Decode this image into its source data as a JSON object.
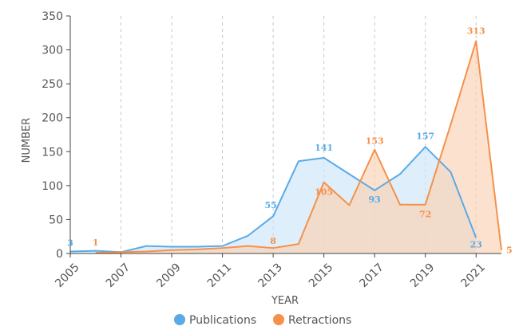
{
  "chart_data": {
    "type": "area",
    "x": [
      2005,
      2006,
      2007,
      2008,
      2009,
      2010,
      2011,
      2012,
      2013,
      2014,
      2015,
      2016,
      2017,
      2018,
      2019,
      2020,
      2021,
      2022
    ],
    "series": [
      {
        "name": "Publications",
        "color": "#5aaae7",
        "fill": "#cce5f8",
        "values": [
          3,
          4,
          2,
          11,
          10,
          10,
          11,
          26,
          55,
          136,
          141,
          117,
          93,
          117,
          157,
          120,
          23,
          null
        ]
      },
      {
        "name": "Retractions",
        "color": "#f5914a",
        "fill": "#fbd2b4",
        "values": [
          null,
          1,
          2,
          3,
          5,
          6,
          8,
          11,
          8,
          14,
          105,
          71,
          153,
          72,
          72,
          190,
          313,
          5
        ]
      }
    ],
    "data_labels": [
      {
        "series": "Publications",
        "x": 2005,
        "text": "3"
      },
      {
        "series": "Retractions",
        "x": 2006,
        "text": "1"
      },
      {
        "series": "Publications",
        "x": 2013,
        "text": "55"
      },
      {
        "series": "Retractions",
        "x": 2013,
        "text": "8"
      },
      {
        "series": "Retractions",
        "x": 2015,
        "text": "105"
      },
      {
        "series": "Publications",
        "x": 2015,
        "text": "141"
      },
      {
        "series": "Retractions",
        "x": 2017,
        "text": "153"
      },
      {
        "series": "Publications",
        "x": 2017,
        "text": "93"
      },
      {
        "series": "Publications",
        "x": 2019,
        "text": "157"
      },
      {
        "series": "Retractions",
        "x": 2019,
        "text": "72"
      },
      {
        "series": "Retractions",
        "x": 2021,
        "text": "313"
      },
      {
        "series": "Publications",
        "x": 2021,
        "text": "23"
      },
      {
        "series": "Retractions",
        "x": 2022,
        "text": "5"
      }
    ],
    "x_ticks": [
      "2005",
      "2007",
      "2009",
      "2011",
      "2013",
      "2015",
      "2017",
      "2019",
      "2021"
    ],
    "y_ticks": [
      "0",
      "50",
      "100",
      "150",
      "200",
      "250",
      "300",
      "350"
    ],
    "xlabel": "YEAR",
    "ylabel": "NUMBER",
    "xlim": [
      2005,
      2022
    ],
    "ylim": [
      0,
      350
    ],
    "grid": "vertical dashed",
    "legend": {
      "position": "bottom",
      "entries": [
        "Publications",
        "Retractions"
      ]
    }
  }
}
